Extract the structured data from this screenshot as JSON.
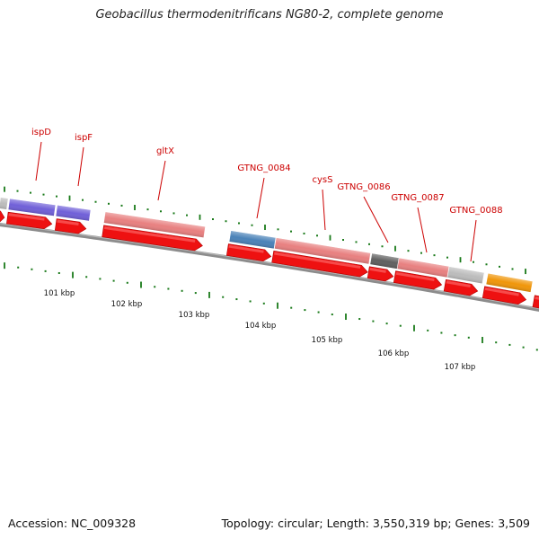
{
  "title": "Geobacillus thermodenitrificans NG80-2, complete genome",
  "footer": {
    "accession": "Accession: NC_009328",
    "summary": "Topology: circular; Length: 3,550,319 bp; Genes: 3,509"
  },
  "colors": {
    "backbone": "#8c8c8c",
    "cds_arrow": "#ee1111",
    "tick": "#1a7a1a",
    "gene_label": "#cc0000",
    "feature_purple": "#7060d8",
    "feature_pink": "#e88080",
    "feature_blue": "#4a82b8",
    "feature_gray": "#bcbcbc",
    "feature_dark": "#606060",
    "feature_orange": "#f0960a"
  },
  "gene_labels": [
    "ispD",
    "ispF",
    "gltX",
    "GTNG_0084",
    "cysS",
    "GTNG_0086",
    "GTNG_0087",
    "GTNG_0088"
  ],
  "features": [
    {
      "kind": "gray"
    },
    {
      "kind": "purple"
    },
    {
      "kind": "purple"
    },
    {
      "kind": "pink"
    },
    {
      "kind": "blue"
    },
    {
      "kind": "pink"
    },
    {
      "kind": "dark"
    },
    {
      "kind": "pink"
    },
    {
      "kind": "gray"
    },
    {
      "kind": "orange"
    }
  ],
  "scale_labels": [
    "101 kbp",
    "102 kbp",
    "103 kbp",
    "104 kbp",
    "105 kbp",
    "106 kbp",
    "107 kbp"
  ]
}
